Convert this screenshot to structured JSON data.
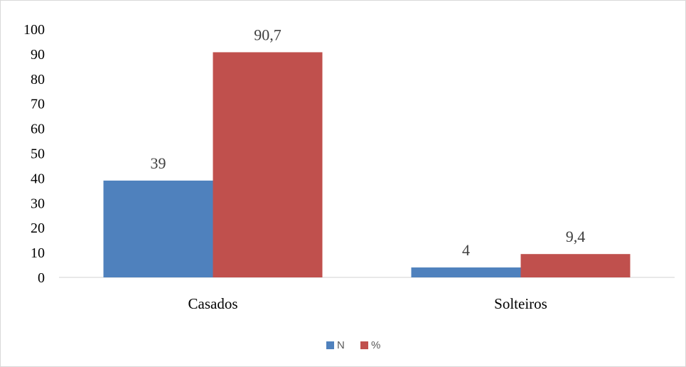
{
  "chart_data": {
    "type": "bar",
    "categories": [
      "Casados",
      "Solteiros"
    ],
    "series": [
      {
        "name": "N",
        "values": [
          39,
          4
        ],
        "labels": [
          "39",
          "4"
        ],
        "color": "#4f81bd"
      },
      {
        "name": "%",
        "values": [
          90.7,
          9.4
        ],
        "labels": [
          "90,7",
          "9,4"
        ],
        "color": "#c0504d"
      }
    ],
    "ylim": [
      0,
      100
    ],
    "yticks": [
      0,
      10,
      20,
      30,
      40,
      50,
      60,
      70,
      80,
      90,
      100
    ],
    "grid": false,
    "legend": "bottom"
  }
}
